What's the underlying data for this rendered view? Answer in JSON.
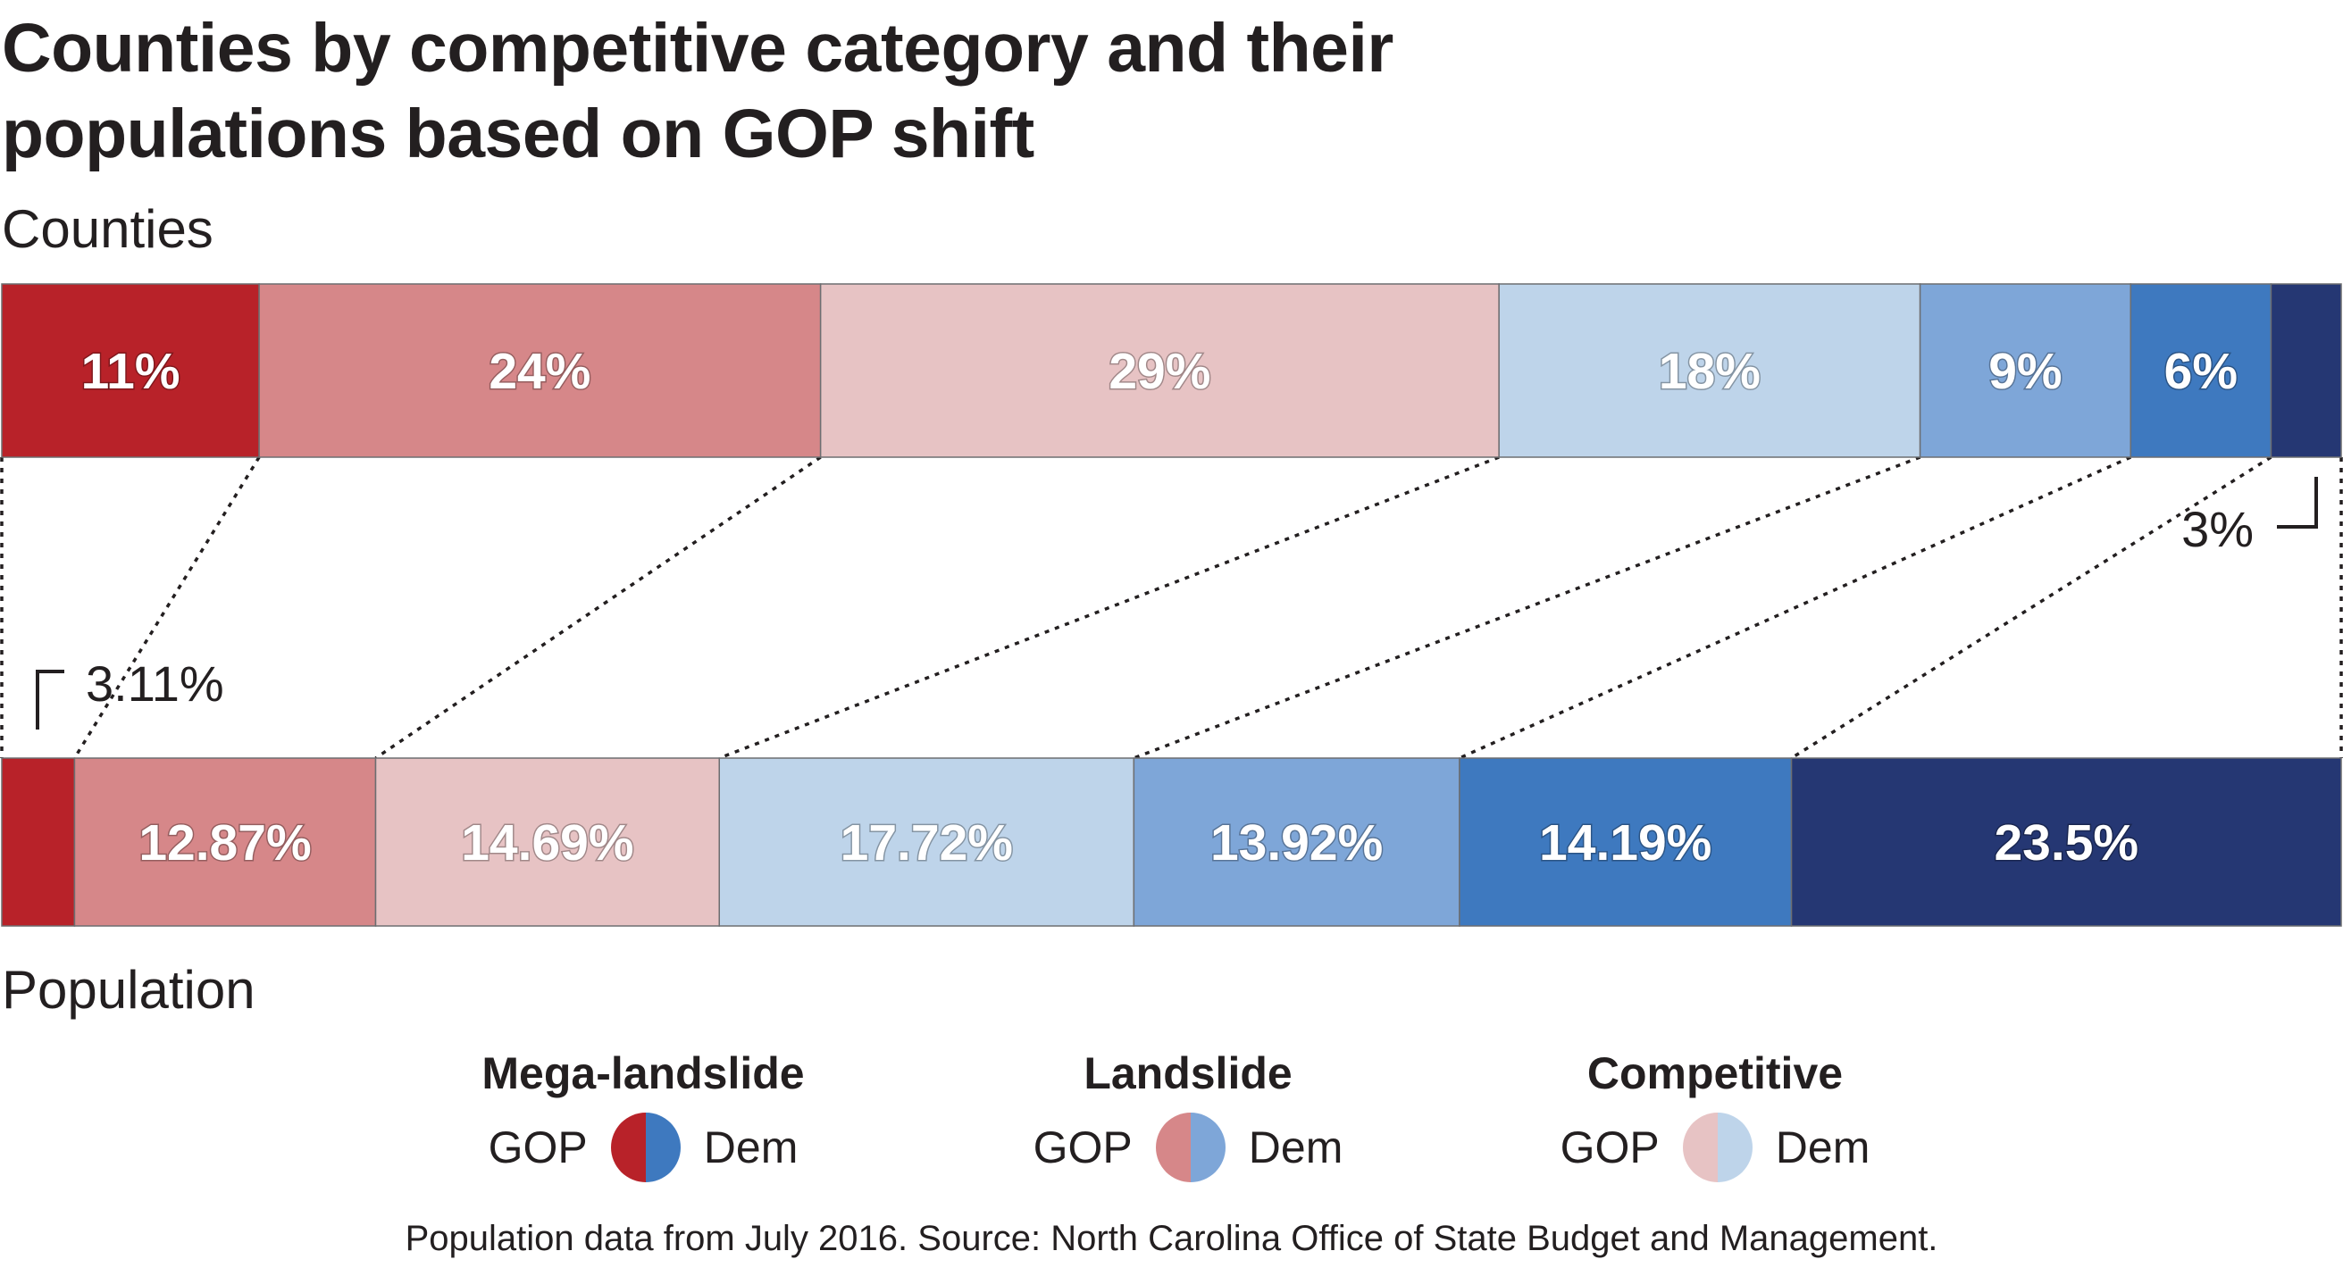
{
  "title": "Counties by competitive category and their populations based on GOP shift",
  "source": "Population data from July 2016. Source: North Carolina Office of State Budget and Management.",
  "colors": {
    "gop_mega": "#b82229",
    "gop_landslide": "#d68789",
    "gop_competitive": "#e7c3c4",
    "dem_competitive": "#bed4ea",
    "dem_landslide": "#7ea6d8",
    "dem_mega": "#3e79bf",
    "dem_mega_dark": "#253773"
  },
  "legend": {
    "groups": [
      {
        "title": "Mega-landslide",
        "gop_label": "GOP",
        "dem_label": "Dem",
        "gop_color": "#b82229",
        "dem_color": "#3e79bf"
      },
      {
        "title": "Landslide",
        "gop_label": "GOP",
        "dem_label": "Dem",
        "gop_color": "#d68789",
        "dem_color": "#7ea6d8"
      },
      {
        "title": "Competitive",
        "gop_label": "GOP",
        "dem_label": "Dem",
        "gop_color": "#e7c3c4",
        "dem_color": "#bed4ea"
      }
    ]
  },
  "chart_data": {
    "type": "bar",
    "orientation": "horizontal-stacked-100",
    "title": "Counties by competitive category and their populations based on GOP shift",
    "bars": [
      {
        "name": "Counties",
        "segments": [
          {
            "value": 11,
            "label": "11%",
            "color": "#b82229"
          },
          {
            "value": 24,
            "label": "24%",
            "color": "#d68789"
          },
          {
            "value": 29,
            "label": "29%",
            "color": "#e7c3c4"
          },
          {
            "value": 18,
            "label": "18%",
            "color": "#bed4ea"
          },
          {
            "value": 9,
            "label": "9%",
            "color": "#7ea6d8"
          },
          {
            "value": 6,
            "label": "6%",
            "color": "#3e79bf"
          },
          {
            "value": 3,
            "label": "3%",
            "color": "#253773",
            "callout": true
          }
        ]
      },
      {
        "name": "Population",
        "segments": [
          {
            "value": 3.11,
            "label": "3.11%",
            "color": "#b82229",
            "callout": true
          },
          {
            "value": 12.87,
            "label": "12.87%",
            "color": "#d68789"
          },
          {
            "value": 14.69,
            "label": "14.69%",
            "color": "#e7c3c4"
          },
          {
            "value": 17.72,
            "label": "17.72%",
            "color": "#bed4ea"
          },
          {
            "value": 13.92,
            "label": "13.92%",
            "color": "#7ea6d8"
          },
          {
            "value": 14.19,
            "label": "14.19%",
            "color": "#3e79bf"
          },
          {
            "value": 23.5,
            "label": "23.5%",
            "color": "#253773"
          }
        ]
      }
    ]
  }
}
